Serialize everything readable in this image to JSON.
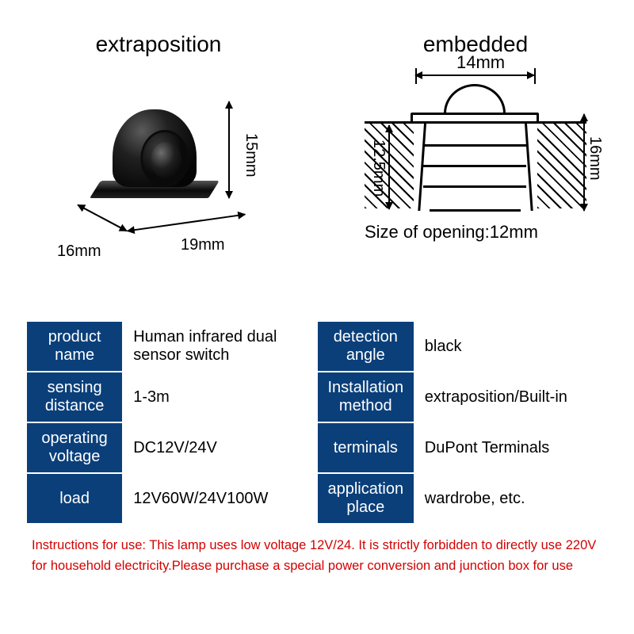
{
  "titles": {
    "left": "extraposition",
    "right": "embedded"
  },
  "extra_dims": {
    "height": "15mm",
    "width": "19mm",
    "depth": "16mm"
  },
  "emb_dims": {
    "top_width": "14mm",
    "insert_depth": "12.5mm",
    "total_height": "16mm",
    "opening_label": "Size of opening:12mm"
  },
  "specs": [
    {
      "k": "product\nname",
      "v": "Human infrared dual sensor switch"
    },
    {
      "k": "detection\nangle",
      "v": "black"
    },
    {
      "k": "sensing\ndistance",
      "v": "1-3m"
    },
    {
      "k": "Installation\nmethod",
      "v": "extraposition/Built-in"
    },
    {
      "k": "operating\nvoltage",
      "v": "DC12V/24V"
    },
    {
      "k": "terminals",
      "v": "DuPont Terminals"
    },
    {
      "k": "load",
      "v": "12V60W/24V100W"
    },
    {
      "k": "application\nplace",
      "v": "wardrobe, etc."
    }
  ],
  "instructions": "Instructions for use: This lamp uses low voltage 12V/24. It is strictly forbidden to directly use 220V for household electricity.Please purchase a special power conversion and junction box for use",
  "colors": {
    "header_bg": "#0a3f7a",
    "header_text": "#ffffff",
    "warn_text": "#d40000"
  }
}
